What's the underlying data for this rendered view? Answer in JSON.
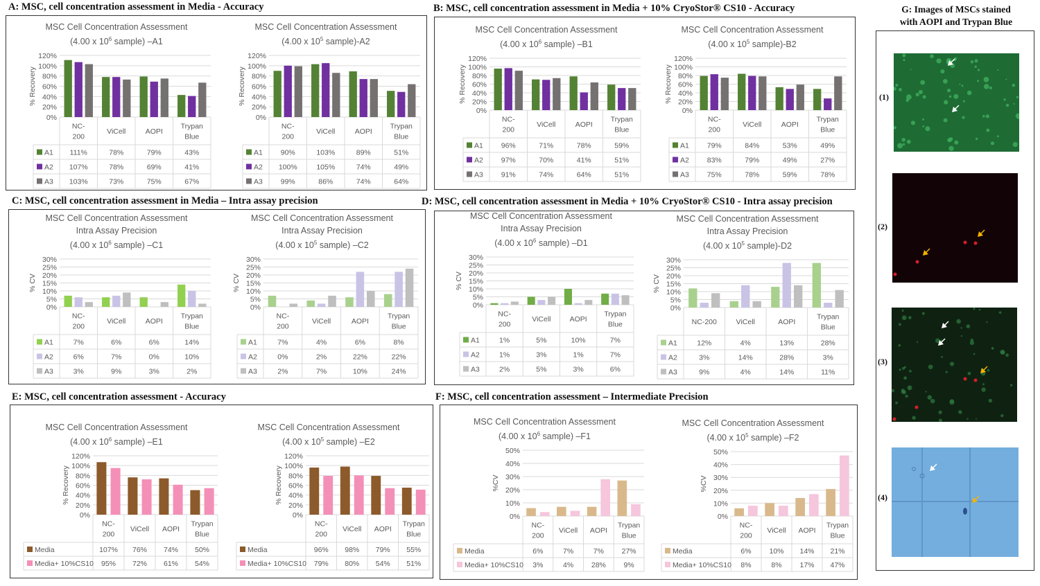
{
  "sections": {
    "A": "A: MSC,  cell concentration  assessment in Media  - Accuracy",
    "B": "B: MSC,  cell concentration  assessment in Media  + 10% CryoStor® CS10 - Accuracy",
    "C": "C: MSC,  cell concentration  assessment in Media  – Intra  assay precision",
    "D": "D: MSC,  cell concentration  assessment in Media  + 10% CryoStor® CS10  - Intra  assay precision",
    "E": "E:  MSC, cell concentration  assessment - Accuracy",
    "F": "F: MSC, cell concentration  assessment – Intermediate  Precision",
    "G_line1": "G: Images of MSCs stained",
    "G_line2": "with AOPI and Trypan  Blue"
  },
  "images": [
    {
      "label": "(1)",
      "type": "green-fluorescence"
    },
    {
      "label": "(2)",
      "type": "red-fluorescence"
    },
    {
      "label": "(3)",
      "type": "merged-fluorescence"
    },
    {
      "label": "(4)",
      "type": "trypan-blue-brightfield"
    }
  ],
  "chart_data": [
    {
      "id": "A1",
      "type": "bar",
      "title_lines": [
        "MSC Cell Concentration Assessment",
        "(4.00 x 10^6  sample) –A1"
      ],
      "ylabel": "% Recovery",
      "ylim": [
        0,
        120
      ],
      "yticks": [
        0,
        20,
        40,
        60,
        80,
        100,
        120
      ],
      "categories": [
        "NC-200",
        "ViCell",
        "AOPI",
        "Trypan Blue"
      ],
      "series": [
        {
          "name": "A1",
          "color": "#548235",
          "values": [
            111,
            78,
            79,
            43
          ]
        },
        {
          "name": "A2",
          "color": "#7030a0",
          "values": [
            107,
            78,
            69,
            41
          ]
        },
        {
          "name": "A3",
          "color": "#767171",
          "values": [
            103,
            73,
            75,
            67
          ]
        }
      ]
    },
    {
      "id": "A2",
      "type": "bar",
      "title_lines": [
        "MSC Cell Concentration Assessment",
        "(4.00 x 10^5  sample)-A2"
      ],
      "ylabel": "% Recovery",
      "ylim": [
        0,
        120
      ],
      "yticks": [
        0,
        20,
        40,
        60,
        80,
        100,
        120
      ],
      "categories": [
        "NC-200",
        "ViCell",
        "AOPI",
        "Trypan Blue"
      ],
      "series": [
        {
          "name": "A1",
          "color": "#548235",
          "values": [
            90,
            103,
            89,
            51
          ]
        },
        {
          "name": "A2",
          "color": "#7030a0",
          "values": [
            100,
            105,
            74,
            49
          ]
        },
        {
          "name": "A3",
          "color": "#767171",
          "values": [
            99,
            86,
            74,
            64
          ]
        }
      ]
    },
    {
      "id": "B1",
      "type": "bar",
      "title_lines": [
        "MSC Cell Concentration Assessment",
        "(4.00 x 10^6  sample) –B1"
      ],
      "ylabel": "% Recovery",
      "ylim": [
        0,
        120
      ],
      "yticks": [
        0,
        20,
        40,
        60,
        80,
        100,
        120
      ],
      "categories": [
        "NC-200",
        "ViCell",
        "AOPI",
        "Trypan Blue"
      ],
      "series": [
        {
          "name": "A1",
          "color": "#548235",
          "values": [
            96,
            71,
            78,
            59
          ]
        },
        {
          "name": "A2",
          "color": "#7030a0",
          "values": [
            97,
            70,
            41,
            51
          ]
        },
        {
          "name": "A3",
          "color": "#767171",
          "values": [
            91,
            74,
            64,
            51
          ]
        }
      ]
    },
    {
      "id": "B2",
      "type": "bar",
      "title_lines": [
        "MSC Cell Concentration Assessment",
        "(4.00 x 10^5  sample)-B2"
      ],
      "ylabel": "% Recovery",
      "ylim": [
        0,
        120
      ],
      "yticks": [
        0,
        20,
        40,
        60,
        80,
        100,
        120
      ],
      "categories": [
        "NC-200",
        "ViCell",
        "AOPI",
        "Trypan Blue"
      ],
      "series": [
        {
          "name": "A1",
          "color": "#548235",
          "values": [
            79,
            84,
            53,
            49
          ]
        },
        {
          "name": "A2",
          "color": "#7030a0",
          "values": [
            83,
            79,
            49,
            27
          ]
        },
        {
          "name": "A3",
          "color": "#767171",
          "values": [
            75,
            78,
            59,
            78
          ]
        }
      ]
    },
    {
      "id": "C1",
      "type": "bar",
      "title_lines": [
        "MSC Cell Concentration Assessment",
        "Intra Assay Precision",
        "(4.00 x 10^6  sample) –C1"
      ],
      "ylabel": "% CV",
      "ylim": [
        0,
        30
      ],
      "yticks": [
        0,
        5,
        10,
        15,
        20,
        25,
        30
      ],
      "categories": [
        "NC-200",
        "ViCell",
        "AOPI",
        "Trypan Blue"
      ],
      "series": [
        {
          "name": "A1",
          "color": "#92d050",
          "values": [
            7,
            6,
            6,
            14
          ]
        },
        {
          "name": "A2",
          "color": "#c9c3e6",
          "values": [
            6,
            7,
            0,
            10
          ]
        },
        {
          "name": "A3",
          "color": "#bfbfbf",
          "values": [
            3,
            9,
            3,
            2
          ]
        }
      ]
    },
    {
      "id": "C2",
      "type": "bar",
      "title_lines": [
        "MSC Cell Concentration Assessment",
        "Intra Assay Precision",
        "(4.00 x 10^5  sample) –C2"
      ],
      "ylabel": "% CV",
      "ylim": [
        0,
        30
      ],
      "yticks": [
        0,
        5,
        10,
        15,
        20,
        25,
        30
      ],
      "categories": [
        "NC-200",
        "ViCell",
        "AOPI",
        "Trypan Blue"
      ],
      "series": [
        {
          "name": "A1",
          "color": "#a9d18e",
          "values": [
            7,
            4,
            6,
            8
          ]
        },
        {
          "name": "A2",
          "color": "#c9c3e6",
          "values": [
            0,
            2,
            22,
            22
          ]
        },
        {
          "name": "A3",
          "color": "#bfbfbf",
          "values": [
            2,
            7,
            10,
            24
          ]
        }
      ]
    },
    {
      "id": "D1",
      "type": "bar",
      "title_lines": [
        "MSC Cell Concentration Assessment",
        "Intra Assay Precision",
        "(4.00 x 10^6  sample) –D1"
      ],
      "ylabel": "% CV",
      "ylim": [
        0,
        30
      ],
      "yticks": [
        0,
        5,
        10,
        15,
        20,
        25,
        30
      ],
      "categories": [
        "NC-200",
        "ViCell",
        "AOPI",
        "Trypan Blue"
      ],
      "series": [
        {
          "name": "A1",
          "color": "#70ad47",
          "values": [
            1,
            5,
            10,
            7
          ]
        },
        {
          "name": "A2",
          "color": "#c9c3e6",
          "values": [
            1,
            3,
            1,
            7
          ]
        },
        {
          "name": "A3",
          "color": "#bfbfbf",
          "values": [
            2,
            5,
            3,
            6
          ]
        }
      ]
    },
    {
      "id": "D2",
      "type": "bar",
      "title_lines": [
        "MSC Cell Concentration Assessment",
        "Intra Assay Precision",
        "(4.00 x 10^5  sample)-D2"
      ],
      "ylabel": "% CV",
      "ylim": [
        0,
        30
      ],
      "yticks": [
        0,
        5,
        10,
        15,
        20,
        25,
        30
      ],
      "categories": [
        "NC-200",
        "ViCell",
        "AOPI",
        "Trypan Blue"
      ],
      "series": [
        {
          "name": "A1",
          "color": "#a9d18e",
          "values": [
            12,
            4,
            13,
            28
          ]
        },
        {
          "name": "A2",
          "color": "#c9c3e6",
          "values": [
            3,
            14,
            28,
            3
          ]
        },
        {
          "name": "A3",
          "color": "#bfbfbf",
          "values": [
            9,
            4,
            14,
            11
          ]
        }
      ]
    },
    {
      "id": "E1",
      "type": "bar",
      "title_lines": [
        "MSC Cell Concentration Assessment",
        "(4.00 x 10^6  sample) –E1"
      ],
      "ylabel": "% Recovery",
      "ylim": [
        0,
        120
      ],
      "yticks": [
        0,
        20,
        40,
        60,
        80,
        100,
        120
      ],
      "categories": [
        "NC-200",
        "ViCell",
        "AOPI",
        "Trypan Blue"
      ],
      "series": [
        {
          "name": "Media",
          "color": "#8c5a2b",
          "values": [
            107,
            76,
            74,
            50
          ]
        },
        {
          "name": "Media+ 10%CS10",
          "color": "#f48fb8",
          "values": [
            95,
            72,
            61,
            54
          ]
        }
      ]
    },
    {
      "id": "E2",
      "type": "bar",
      "title_lines": [
        "MSC Cell Concentration Assessment",
        "(4.00 x 10^5  sample) –E2"
      ],
      "ylabel": "% Recovery",
      "ylim": [
        0,
        120
      ],
      "yticks": [
        0,
        20,
        40,
        60,
        80,
        100,
        120
      ],
      "categories": [
        "NC-200",
        "ViCell",
        "AOPI",
        "Trypan Blue"
      ],
      "series": [
        {
          "name": "Media",
          "color": "#8c5a2b",
          "values": [
            96,
            98,
            79,
            55
          ]
        },
        {
          "name": "Media+ 10%CS10",
          "color": "#f48fb8",
          "values": [
            79,
            80,
            54,
            51
          ]
        }
      ]
    },
    {
      "id": "F1",
      "type": "bar",
      "title_lines": [
        "MSC Cell Concentration Assessment",
        "(4.00 x 10^6  sample) –F1"
      ],
      "ylabel": "%CV",
      "ylim": [
        0,
        50
      ],
      "yticks": [
        0,
        10,
        20,
        30,
        40,
        50
      ],
      "categories": [
        "NC-200",
        "ViCell",
        "AOPI",
        "Trypan Blue"
      ],
      "series": [
        {
          "name": "Media",
          "color": "#d9b98c",
          "values": [
            6,
            7,
            7,
            27
          ]
        },
        {
          "name": "Media+ 10%CS10",
          "color": "#f5c6dc",
          "values": [
            3,
            4,
            28,
            9
          ]
        }
      ]
    },
    {
      "id": "F2",
      "type": "bar",
      "title_lines": [
        "MSC Cell Concentration Assessment",
        "(4.00 x 10^5  sample) –F2"
      ],
      "ylabel": "%CV",
      "ylim": [
        0,
        50
      ],
      "yticks": [
        0,
        10,
        20,
        30,
        40,
        50
      ],
      "categories": [
        "NC-200",
        "ViCell",
        "AOPI",
        "Trypan Blue"
      ],
      "series": [
        {
          "name": "Media",
          "color": "#d9b98c",
          "values": [
            6,
            10,
            14,
            21
          ]
        },
        {
          "name": "Media+ 10%CS10",
          "color": "#f5c6dc",
          "values": [
            8,
            8,
            17,
            47
          ]
        }
      ]
    }
  ]
}
